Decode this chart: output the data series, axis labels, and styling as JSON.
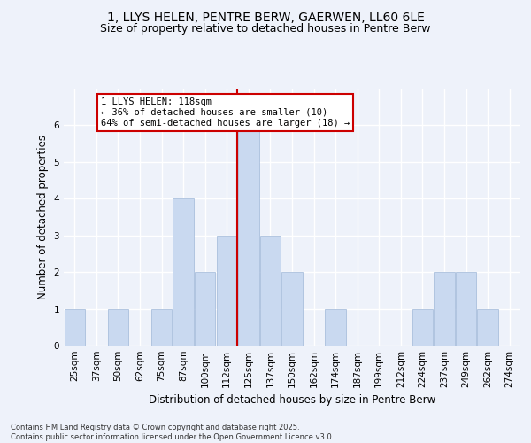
{
  "title": "1, LLYS HELEN, PENTRE BERW, GAERWEN, LL60 6LE",
  "subtitle": "Size of property relative to detached houses in Pentre Berw",
  "xlabel": "Distribution of detached houses by size in Pentre Berw",
  "ylabel": "Number of detached properties",
  "categories": [
    "25sqm",
    "37sqm",
    "50sqm",
    "62sqm",
    "75sqm",
    "87sqm",
    "100sqm",
    "112sqm",
    "125sqm",
    "137sqm",
    "150sqm",
    "162sqm",
    "174sqm",
    "187sqm",
    "199sqm",
    "212sqm",
    "224sqm",
    "237sqm",
    "249sqm",
    "262sqm",
    "274sqm"
  ],
  "values": [
    1,
    0,
    1,
    0,
    1,
    4,
    2,
    3,
    6,
    3,
    2,
    0,
    1,
    0,
    0,
    0,
    1,
    2,
    2,
    1,
    0
  ],
  "bar_color": "#c9d9f0",
  "bar_edge_color": "#a0b8d8",
  "highlight_line_color": "#cc0000",
  "annotation_text": "1 LLYS HELEN: 118sqm\n← 36% of detached houses are smaller (10)\n64% of semi-detached houses are larger (18) →",
  "annotation_box_color": "#cc0000",
  "ylim": [
    0,
    7
  ],
  "yticks": [
    0,
    1,
    2,
    3,
    4,
    5,
    6,
    7
  ],
  "background_color": "#eef2fa",
  "grid_color": "#ffffff",
  "footer": "Contains HM Land Registry data © Crown copyright and database right 2025.\nContains public sector information licensed under the Open Government Licence v3.0.",
  "title_fontsize": 10,
  "subtitle_fontsize": 9,
  "xlabel_fontsize": 8.5,
  "ylabel_fontsize": 8.5,
  "tick_fontsize": 7.5,
  "annotation_fontsize": 7.5
}
